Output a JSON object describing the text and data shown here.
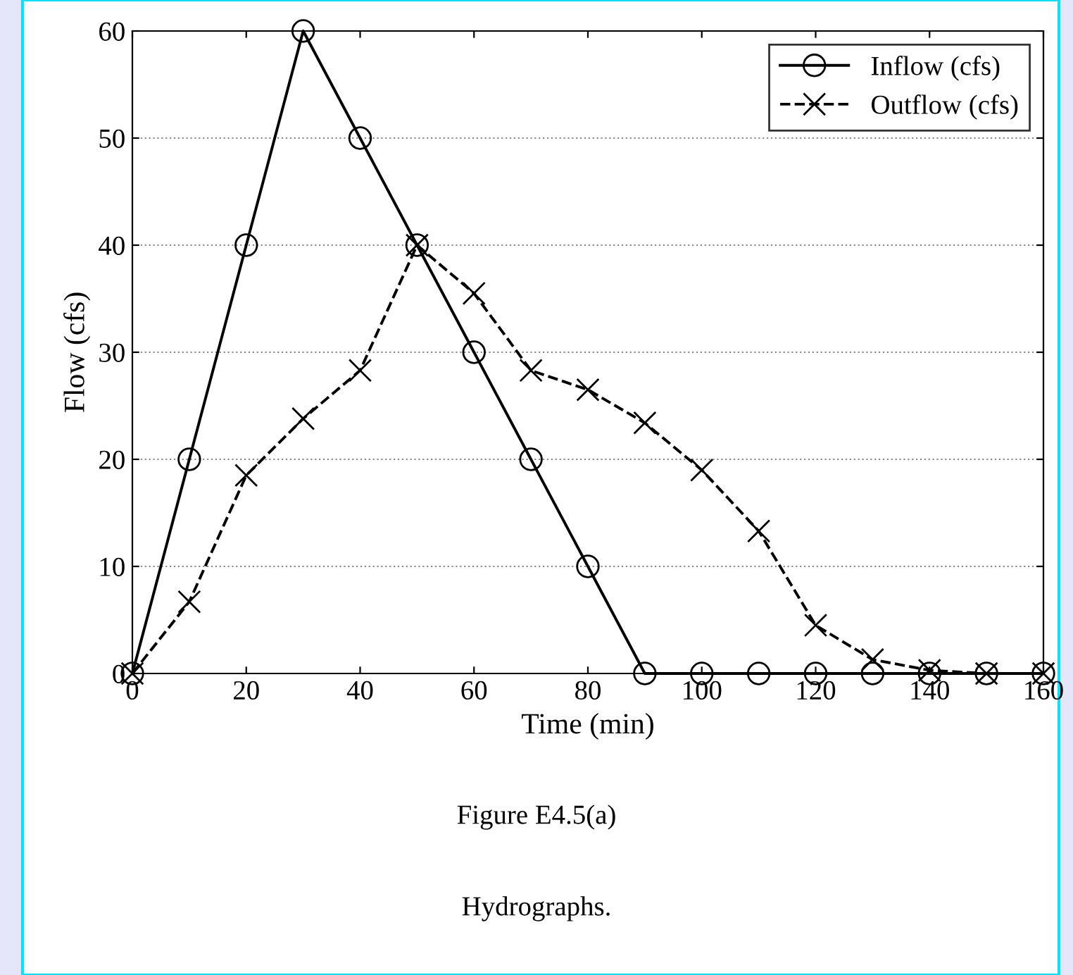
{
  "chart_data": {
    "type": "line",
    "xlabel": "Time (min)",
    "ylabel": "Flow (cfs)",
    "x": [
      0,
      10,
      20,
      30,
      40,
      50,
      60,
      70,
      80,
      90,
      100,
      110,
      120,
      130,
      140,
      150,
      160
    ],
    "series": [
      {
        "name": "Inflow (cfs)",
        "color": "#000000",
        "line_style": "solid",
        "marker": "circle",
        "values": [
          0,
          20,
          40,
          60,
          50,
          40,
          30,
          20,
          10,
          0,
          0,
          0,
          0,
          0,
          0,
          0,
          0
        ]
      },
      {
        "name": "Outflow (cfs)",
        "color": "#000000",
        "line_style": "dashed",
        "marker": "cross",
        "values": [
          0,
          6.7,
          18.5,
          23.8,
          28.3,
          40,
          35.5,
          28.3,
          26.5,
          23.4,
          19,
          13.3,
          4.5,
          1.3,
          0.3,
          0,
          0
        ]
      }
    ],
    "xlim": [
      0,
      160
    ],
    "xticks": [
      0,
      20,
      40,
      60,
      80,
      100,
      120,
      140,
      160
    ],
    "ylim": [
      0,
      60
    ],
    "yticks": [
      0,
      10,
      20,
      30,
      40,
      50,
      60
    ],
    "grid": "y",
    "legend": "top right",
    "annotations": [
      "Figure E4.5(a)",
      "Hydrographs."
    ]
  }
}
